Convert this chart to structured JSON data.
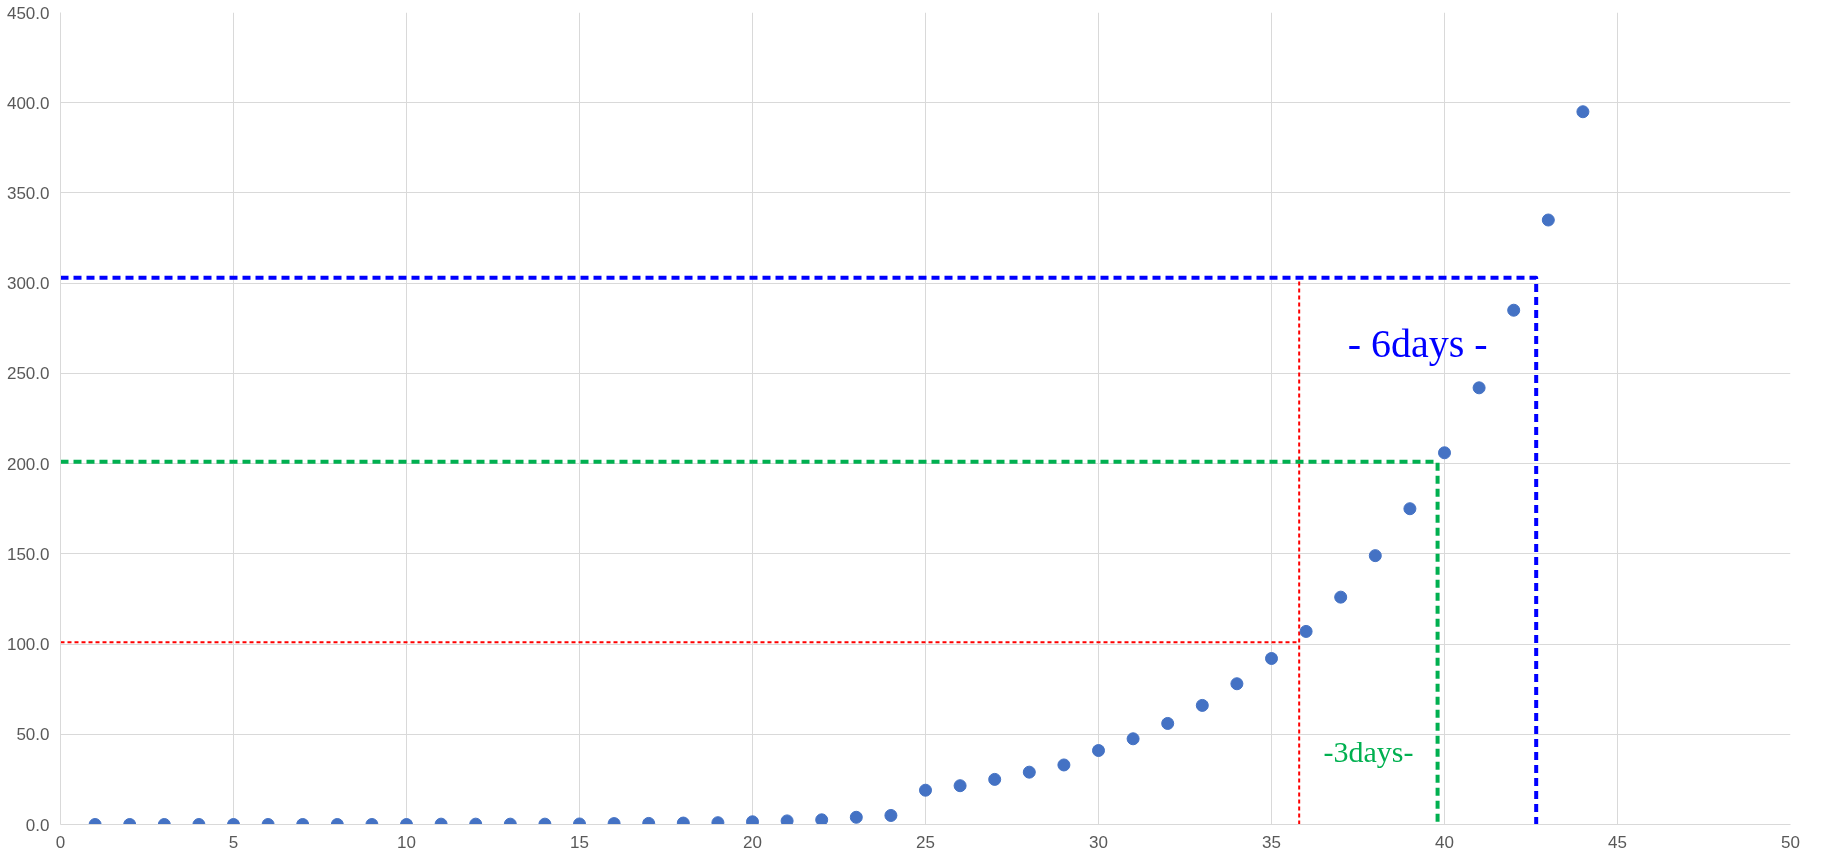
{
  "chart_data": {
    "type": "scatter",
    "x": [
      1,
      2,
      3,
      4,
      5,
      6,
      7,
      8,
      9,
      10,
      11,
      12,
      13,
      14,
      15,
      16,
      17,
      18,
      19,
      20,
      21,
      22,
      23,
      24,
      25,
      26,
      27,
      28,
      29,
      30,
      31,
      32,
      33,
      34,
      35,
      36,
      37,
      38,
      39,
      40,
      41,
      42,
      43,
      44
    ],
    "series": [
      {
        "color": "#4472c4",
        "marker": "circle",
        "values": [
          0,
          0,
          0,
          0,
          0,
          0,
          0,
          0,
          0,
          0,
          0.2,
          0.2,
          0.2,
          0.2,
          0.3,
          0.5,
          0.6,
          0.8,
          1,
          1.5,
          2,
          2.6,
          4,
          5,
          19,
          21.5,
          25,
          29,
          33,
          41,
          47.5,
          56,
          66,
          78,
          92,
          107,
          126,
          149,
          175,
          206,
          242,
          285,
          335,
          395
        ]
      },
      {
        "type": "line",
        "color": "#ff0000",
        "line_style": "dotted",
        "x": [
          0,
          35.8
        ],
        "values": [
          101,
          101
        ]
      },
      {
        "type": "line",
        "color": "#ff0000",
        "line_style": "dotted",
        "x": [
          35.8,
          35.8
        ],
        "values": [
          0,
          303
        ]
      },
      {
        "type": "line",
        "color": "#00b050",
        "line_style": "dashed",
        "x": [
          0,
          39.8,
          39.8
        ],
        "values": [
          201,
          201,
          0
        ]
      },
      {
        "type": "line",
        "color": "#0000ff",
        "line_style": "dashed",
        "x": [
          0,
          42.65,
          42.65
        ],
        "values": [
          303,
          303,
          0
        ]
      }
    ],
    "xlim": [
      0,
      50
    ],
    "xticks": [
      0,
      5,
      10,
      15,
      20,
      25,
      30,
      35,
      40,
      45,
      50
    ],
    "ylim": [
      0,
      450
    ],
    "yticks": [
      {
        "value": 0,
        "label": "0.0"
      },
      {
        "value": 50,
        "label": "50.0"
      },
      {
        "value": 100,
        "label": "100.0"
      },
      {
        "value": 150,
        "label": "150.0"
      },
      {
        "value": 200,
        "label": "200.0"
      },
      {
        "value": 250,
        "label": "250.0"
      },
      {
        "value": 300,
        "label": "300.0"
      },
      {
        "value": 350,
        "label": "350.0"
      },
      {
        "value": 400,
        "label": "400.0"
      },
      {
        "value": 450,
        "label": "450.0"
      }
    ],
    "grid": true,
    "annotations": [
      "- 6days -",
      "-3days-"
    ]
  }
}
